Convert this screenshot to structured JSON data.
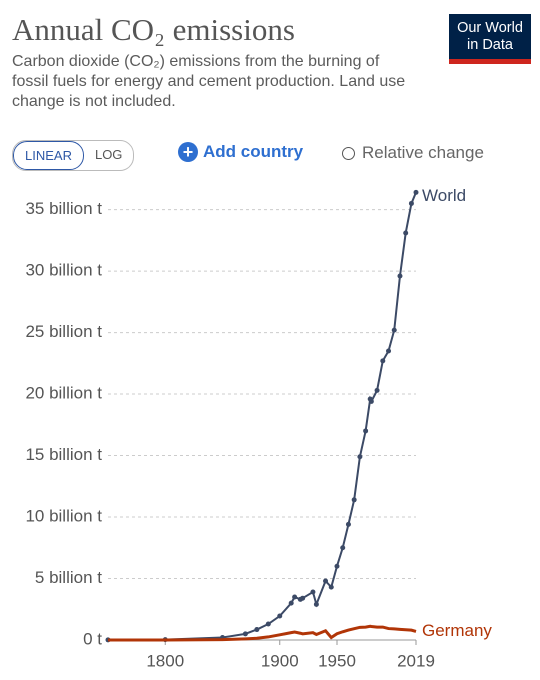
{
  "logo": "Our World in Data",
  "controls": {
    "scale_buttons": [
      "LINEAR",
      "LOG"
    ],
    "add": "Add country",
    "toggle": "Relative change"
  },
  "chart_data": {
    "type": "line",
    "title": "Annual CO₂ emissions",
    "subtitle": "Carbon dioxide (CO₂) emissions from the burning of fossil fuels for energy and cement production. Land use change is not included.",
    "x": [
      1750,
      1800,
      1850,
      1870,
      1880,
      1890,
      1900,
      1910,
      1913,
      1918,
      1920,
      1929,
      1932,
      1940,
      1945,
      1950,
      1955,
      1960,
      1965,
      1970,
      1975,
      1979,
      1980,
      1985,
      1990,
      1995,
      2000,
      2005,
      2010,
      2015,
      2019
    ],
    "series": [
      {
        "name": "World",
        "color": "#3c4a66",
        "markers": true,
        "values": [
          0.009,
          0.028,
          0.2,
          0.5,
          0.85,
          1.3,
          1.95,
          3.0,
          3.5,
          3.3,
          3.4,
          3.9,
          2.9,
          4.8,
          4.3,
          6.0,
          7.5,
          9.4,
          11.4,
          14.9,
          17.0,
          19.6,
          19.4,
          20.3,
          22.7,
          23.5,
          25.2,
          29.6,
          33.1,
          35.5,
          36.4
        ]
      },
      {
        "name": "Germany",
        "color": "#b13507",
        "markers": false,
        "values": [
          0.0,
          0.001,
          0.03,
          0.09,
          0.14,
          0.25,
          0.42,
          0.6,
          0.65,
          0.55,
          0.5,
          0.6,
          0.45,
          0.75,
          0.2,
          0.51,
          0.67,
          0.81,
          0.92,
          1.03,
          1.05,
          1.12,
          1.1,
          1.05,
          1.05,
          0.93,
          0.9,
          0.86,
          0.83,
          0.8,
          0.7
        ]
      }
    ],
    "xlim": [
      1750,
      2019
    ],
    "xticks": [
      1800,
      1900,
      1950,
      2019
    ],
    "ylim": [
      0,
      37
    ],
    "yticks": [
      {
        "value": 0,
        "label": "0 t"
      },
      {
        "value": 5,
        "label": "5 billion t"
      },
      {
        "value": 10,
        "label": "10 billion t"
      },
      {
        "value": 15,
        "label": "15 billion t"
      },
      {
        "value": 20,
        "label": "20 billion t"
      },
      {
        "value": 25,
        "label": "25 billion t"
      },
      {
        "value": 30,
        "label": "30 billion t"
      },
      {
        "value": 35,
        "label": "35 billion t"
      }
    ],
    "grid": true
  }
}
